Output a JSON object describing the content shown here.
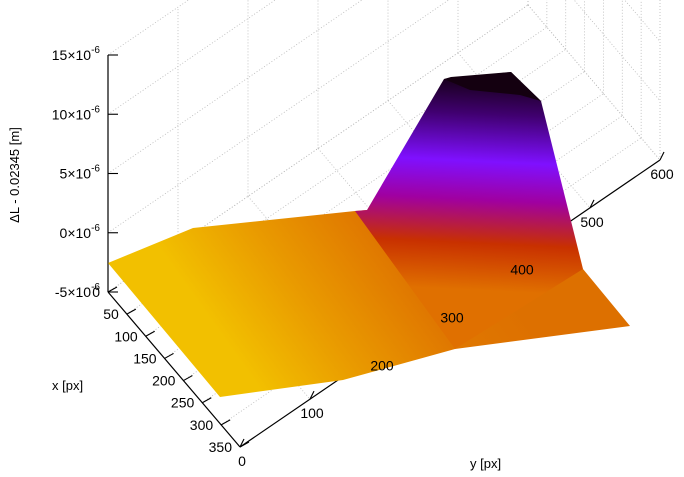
{
  "chart_data": {
    "type": "surface",
    "title": "",
    "xlabel": "x [px]",
    "ylabel": "y [px]",
    "zlabel": "ΔL - 0.02345 [m]",
    "xlim": [
      0,
      350
    ],
    "ylim": [
      0,
      600
    ],
    "zlim": [
      -5e-06,
      1.5e-05
    ],
    "x_ticks": [
      "0",
      "50",
      "100",
      "150",
      "200",
      "250",
      "300",
      "350"
    ],
    "y_ticks": [
      "0",
      "100",
      "200",
      "300",
      "400",
      "500",
      "600"
    ],
    "z_ticks": [
      {
        "value": -5e-06,
        "mantissa": "-5",
        "times": "×10",
        "exp": "-6"
      },
      {
        "value": 0,
        "mantissa": "0",
        "times": "×10",
        "exp": "-6"
      },
      {
        "value": 5e-06,
        "mantissa": "5",
        "times": "×10",
        "exp": "-6"
      },
      {
        "value": 1e-05,
        "mantissa": "10",
        "times": "×10",
        "exp": "-6"
      },
      {
        "value": 1.5e-05,
        "mantissa": "15",
        "times": "×10",
        "exp": "-6"
      }
    ],
    "grid": true,
    "colormap": [
      "#000000",
      "#7f00ff",
      "#c02000",
      "#e07000",
      "#f2c000"
    ],
    "surface_points": [
      {
        "x": 0,
        "y": 0,
        "z": -2e-06
      },
      {
        "x": 0,
        "y": 180,
        "z": 5e-07
      },
      {
        "x": 0,
        "y": 330,
        "z": 1.3e-06
      },
      {
        "x": 0,
        "y": 400,
        "z": 1.36e-05
      },
      {
        "x": 0,
        "y": 500,
        "z": 1.45e-05
      },
      {
        "x": 0,
        "y": 560,
        "z": 1.25e-05
      },
      {
        "x": 170,
        "y": 560,
        "z": -2e-06
      },
      {
        "x": 350,
        "y": 600,
        "z": -1.6e-06
      },
      {
        "x": 350,
        "y": 430,
        "z": -2.6e-06
      },
      {
        "x": 350,
        "y": 300,
        "z": -4e-06
      },
      {
        "x": 350,
        "y": 0,
        "z": -4.7e-06
      }
    ]
  }
}
